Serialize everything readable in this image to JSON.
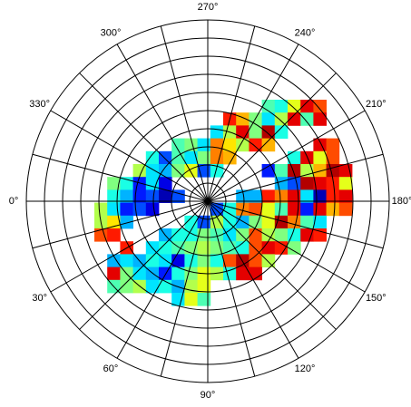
{
  "chart_data": {
    "type": "polar-heatmap",
    "colormap": "jet",
    "clim": [
      0,
      1
    ],
    "rlim": [
      0,
      10
    ],
    "rticks": [
      1,
      2,
      3,
      4,
      5,
      6,
      7,
      8,
      9,
      10
    ],
    "thetagrid": [
      0,
      15,
      30,
      45,
      60,
      75,
      90,
      105,
      120,
      135,
      150,
      165,
      180,
      195,
      210,
      225,
      240,
      255,
      270,
      285,
      300,
      315,
      330,
      345
    ],
    "thetaticks": [
      {
        "value": 0,
        "label": "0°"
      },
      {
        "value": 30,
        "label": "30°"
      },
      {
        "value": 60,
        "label": "60°"
      },
      {
        "value": 90,
        "label": "90°"
      },
      {
        "value": 120,
        "label": "120°"
      },
      {
        "value": 150,
        "label": "150°"
      },
      {
        "value": 180,
        "label": "180°"
      },
      {
        "value": 210,
        "label": "210°"
      },
      {
        "value": 240,
        "label": "240°"
      },
      {
        "value": 270,
        "label": "270°"
      },
      {
        "value": 300,
        "label": "300°"
      },
      {
        "value": 330,
        "label": "330°"
      }
    ],
    "values": [
      [
        null,
        null,
        null,
        null,
        null,
        null,
        null,
        null,
        null,
        null,
        null,
        null,
        null,
        0.45,
        0.4,
        0.6,
        0.9,
        0.8,
        null,
        null
      ],
      [
        null,
        null,
        null,
        null,
        null,
        null,
        null,
        null,
        null,
        null,
        0.85,
        0.7,
        0.5,
        0.35,
        0.55,
        0.9,
        0.45,
        0.9,
        null,
        null
      ],
      [
        null,
        null,
        null,
        null,
        null,
        null,
        null,
        null,
        null,
        0.35,
        0.55,
        0.9,
        0.5,
        0.95,
        0.4,
        null,
        null,
        null,
        null,
        null
      ],
      [
        null,
        null,
        null,
        null,
        null,
        null,
        0.45,
        0.5,
        0.35,
        0.75,
        0.65,
        0.55,
        0.85,
        0.7,
        null,
        null,
        null,
        0.9,
        0.8,
        null
      ],
      [
        null,
        null,
        null,
        null,
        0.4,
        0.2,
        0.45,
        0.35,
        0.5,
        0.75,
        0.7,
        null,
        null,
        null,
        null,
        0.4,
        0.9,
        0.6,
        0.8,
        null
      ],
      [
        null,
        null,
        null,
        0.55,
        0.35,
        0.3,
        0.5,
        0.6,
        0.2,
        0.4,
        null,
        null,
        null,
        0.15,
        0.45,
        0.95,
        0.55,
        0.7,
        0.95,
        0.9
      ],
      [
        null,
        0.5,
        0.4,
        0.15,
        0.35,
        0.1,
        null,
        null,
        null,
        null,
        null,
        null,
        null,
        null,
        0.3,
        0.2,
        0.95,
        0.9,
        0.85,
        0.6
      ],
      [
        null,
        0.4,
        0.3,
        0.15,
        0.2,
        0.05,
        0.2,
        null,
        null,
        null,
        null,
        0.3,
        0.3,
        0.85,
        0.75,
        0.9,
        0.35,
        0.05,
        0.85,
        0.9
      ],
      [
        0.55,
        0.35,
        0.15,
        0.2,
        0.1,
        null,
        null,
        null,
        null,
        0.2,
        0.4,
        0.75,
        0.8,
        0.6,
        0.45,
        0.9,
        0.15,
        0.9,
        0.7,
        0.8
      ],
      [
        0.55,
        0.65,
        0.3,
        null,
        null,
        null,
        null,
        0.4,
        0.2,
        0.55,
        0.4,
        0.3,
        0.5,
        0.6,
        0.95,
        0.75,
        0.45,
        0.35,
        null,
        null
      ],
      [
        0.8,
        0.85,
        null,
        null,
        null,
        0.3,
        0.4,
        0.4,
        0.5,
        0.45,
        0.35,
        0.5,
        0.8,
        0.55,
        0.5,
        0.4,
        0.9,
        0.85,
        null,
        null
      ],
      [
        null,
        null,
        0.85,
        null,
        0.35,
        0.4,
        0.45,
        0.5,
        0.55,
        0.5,
        0.45,
        0.4,
        0.8,
        0.9,
        0.85,
        0.5,
        null,
        null,
        null,
        null
      ],
      [
        null,
        0.3,
        0.35,
        0.3,
        0.4,
        0.35,
        0.1,
        0.4,
        0.5,
        0.4,
        0.8,
        0.95,
        0.8,
        0.55,
        null,
        null,
        null,
        null,
        null,
        null
      ],
      [
        null,
        0.9,
        0.5,
        0.35,
        0.3,
        0.15,
        0.4,
        0.5,
        0.6,
        0.55,
        0.4,
        0.9,
        0.9,
        null,
        null,
        null,
        null,
        null,
        null,
        null
      ],
      [
        null,
        0.45,
        0.5,
        0.55,
        0.35,
        0.4,
        0.3,
        0.55,
        0.6,
        null,
        null,
        null,
        null,
        null,
        null,
        null,
        null,
        null,
        null,
        null
      ],
      [
        null,
        null,
        null,
        null,
        null,
        null,
        0.35,
        0.6,
        0.45,
        null,
        null,
        null,
        null,
        null,
        null,
        null,
        null,
        null,
        null,
        null
      ]
    ]
  }
}
